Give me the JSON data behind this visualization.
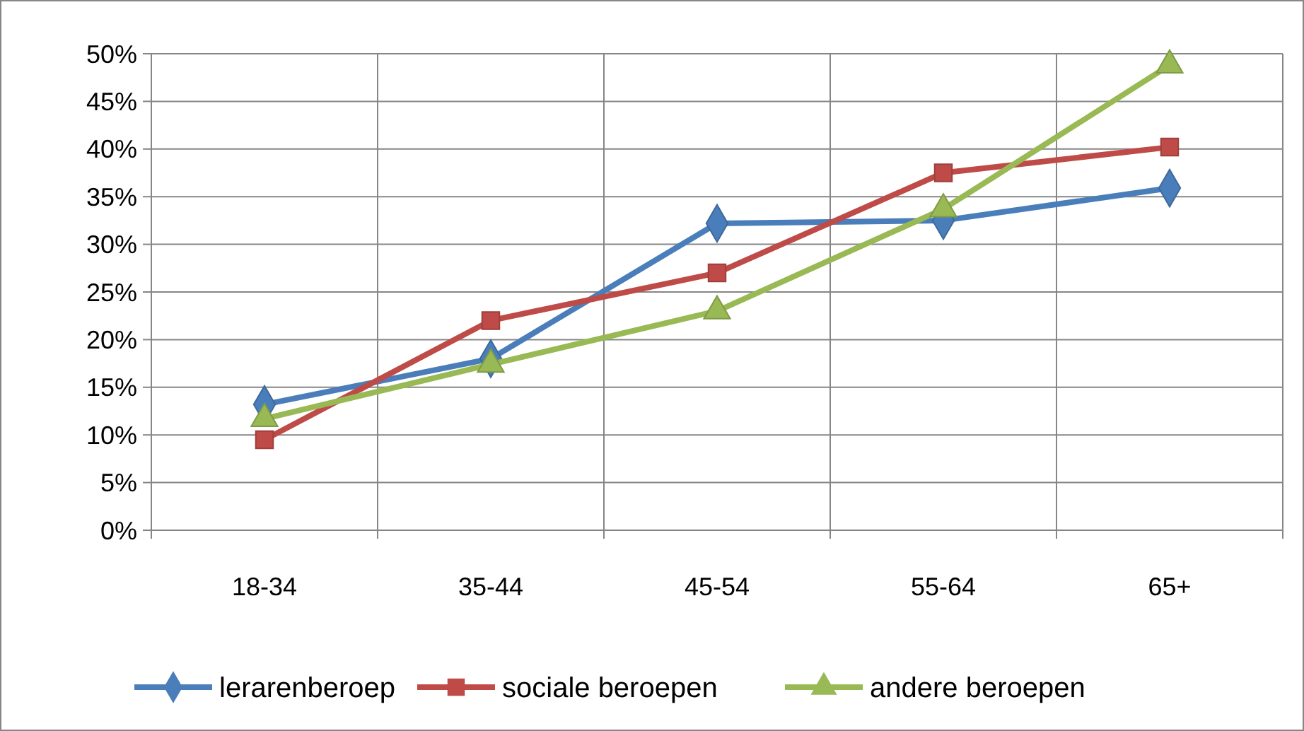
{
  "chart_data": {
    "type": "line",
    "categories": [
      "18-34",
      "35-44",
      "45-54",
      "55-64",
      "65+"
    ],
    "series": [
      {
        "name": "lerarenberoep",
        "color": "#4a7ebb",
        "marker": "diamond",
        "values": [
          13.2,
          18,
          32.2,
          32.5,
          35.9
        ]
      },
      {
        "name": "sociale beroepen",
        "color": "#be4b48",
        "marker": "square",
        "values": [
          9.5,
          22,
          27,
          37.5,
          40.2
        ]
      },
      {
        "name": "andere beroepen",
        "color": "#98b954",
        "marker": "triangle",
        "values": [
          11.7,
          17.4,
          23,
          33.7,
          48.8
        ]
      }
    ],
    "ylim": [
      0,
      50
    ],
    "yticks": [
      {
        "value": 0,
        "label": "0%"
      },
      {
        "value": 5,
        "label": "5%"
      },
      {
        "value": 10,
        "label": "10%"
      },
      {
        "value": 15,
        "label": "15%"
      },
      {
        "value": 20,
        "label": "20%"
      },
      {
        "value": 25,
        "label": "25%"
      },
      {
        "value": 30,
        "label": "30%"
      },
      {
        "value": 35,
        "label": "35%"
      },
      {
        "value": 40,
        "label": "40%"
      },
      {
        "value": 45,
        "label": "45%"
      },
      {
        "value": 50,
        "label": "50%"
      }
    ],
    "grid": true,
    "legend": "bottom",
    "line_style": "solid"
  }
}
